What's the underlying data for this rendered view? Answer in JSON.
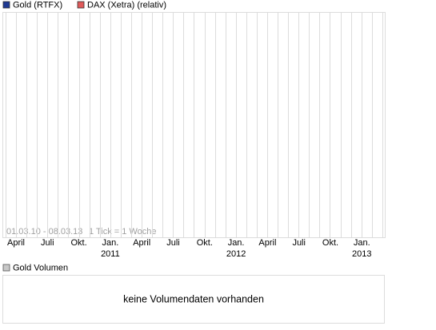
{
  "chart_data": {
    "type": "line",
    "categories": [
      "April",
      "Juli",
      "Okt.",
      "Jan.",
      "April",
      "Juli",
      "Okt.",
      "Jan.",
      "April",
      "Juli",
      "Okt.",
      "Jan."
    ],
    "year_labels": [
      "2011",
      "2012",
      "2013"
    ],
    "series": [
      {
        "name": "Gold (RTFX)",
        "color": "#1f3a93",
        "values": [
          null,
          null,
          null,
          null,
          null,
          null,
          null,
          null,
          null,
          null,
          null,
          null
        ]
      },
      {
        "name": "DAX (Xetra) (relativ)",
        "color": "#e05a5a",
        "values": [
          null,
          null,
          null,
          null,
          null,
          null,
          null,
          null,
          null,
          null,
          null,
          null
        ]
      }
    ],
    "annotations": [
      "01.03.10 - 08.03.13",
      "1 Tick = 1 Woche"
    ],
    "grid": true,
    "volume_legend": "Gold Volumen",
    "volume_color": "#c8c8c8",
    "volume_message": "keine Volumendaten vorhanden"
  }
}
